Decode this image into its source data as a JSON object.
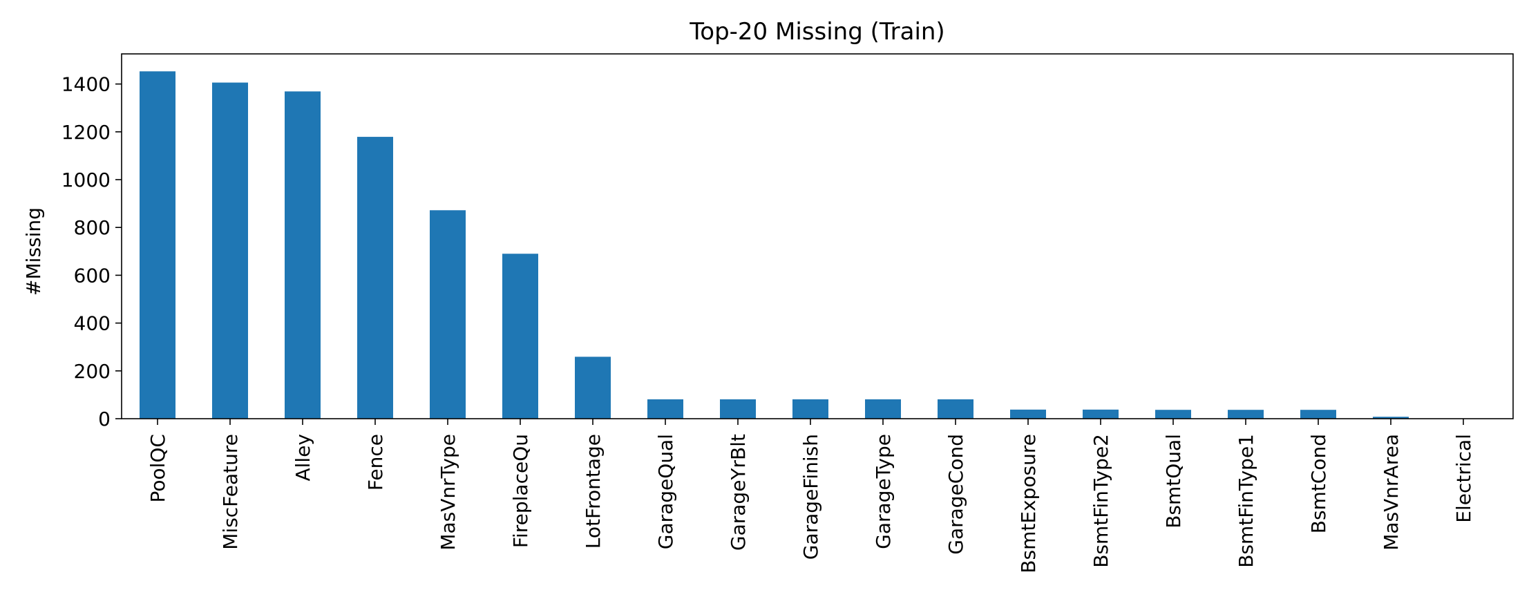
{
  "chart_data": {
    "type": "bar",
    "title": "Top-20 Missing (Train)",
    "xlabel": "",
    "ylabel": "#Missing",
    "categories": [
      "PoolQC",
      "MiscFeature",
      "Alley",
      "Fence",
      "MasVnrType",
      "FireplaceQu",
      "LotFrontage",
      "GarageQual",
      "GarageYrBlt",
      "GarageFinish",
      "GarageType",
      "GarageCond",
      "BsmtExposure",
      "BsmtFinType2",
      "BsmtQual",
      "BsmtFinType1",
      "BsmtCond",
      "MasVnrArea",
      "Electrical"
    ],
    "values": [
      1453,
      1406,
      1369,
      1179,
      872,
      690,
      259,
      81,
      81,
      81,
      81,
      81,
      38,
      38,
      37,
      37,
      37,
      8,
      1
    ],
    "ylim": [
      0,
      1526
    ],
    "yticks": [
      0,
      200,
      400,
      600,
      800,
      1000,
      1200,
      1400
    ],
    "bar_color": "#1f77b4",
    "grid": false,
    "legend": "none"
  }
}
